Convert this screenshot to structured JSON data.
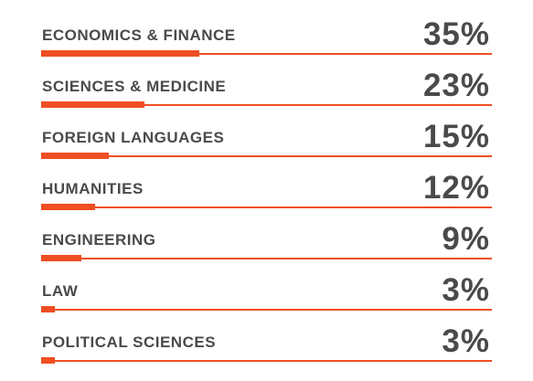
{
  "chart_data": {
    "type": "bar",
    "orientation": "horizontal",
    "categories": [
      "ECONOMICS & FINANCE",
      "SCIENCES & MEDICINE",
      "FOREIGN LANGUAGES",
      "HUMANITIES",
      "ENGINEERING",
      "LAW",
      "POLITICAL SCIENCES"
    ],
    "values": [
      35,
      23,
      15,
      12,
      9,
      3,
      3
    ],
    "value_labels": [
      "35%",
      "23%",
      "15%",
      "12%",
      "9%",
      "3%",
      "3%"
    ],
    "xlim": [
      0,
      100
    ],
    "grid": false,
    "legend": "none",
    "bar_color": "#f04e23",
    "text_color": "#4a4a4a"
  }
}
